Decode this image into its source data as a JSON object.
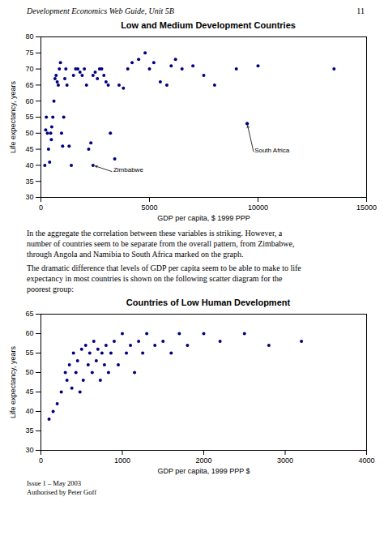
{
  "page_header": "Development Economics Web Guide, Unit 5B",
  "page_number": "11",
  "paragraphs": [
    "In the aggregate the correlation between these variables is striking. However, a\nnumber of countries seem to be separate from the overall pattern, from Zimbabwe,\nthrough Angola and Namibia to South Africa marked on the graph.",
    "The dramatic difference that levels of GDP per capita seem to be able to make to life\nexpectancy in most countries is shown on the following scatter diagram for the\npoorest group:"
  ],
  "footer": [
    "Issue 1 – May 2003",
    "Authorised by Peter Goff"
  ],
  "chart_data": [
    {
      "type": "scatter",
      "title": "Low and Medium Development Countries",
      "xlabel": "GDP per capita, $ 1999 PPP",
      "ylabel": "Life expectancy, years",
      "color": "#000080",
      "x": [
        180,
        220,
        250,
        300,
        350,
        400,
        450,
        480,
        500,
        550,
        600,
        650,
        700,
        750,
        800,
        850,
        900,
        950,
        1000,
        1050,
        1100,
        1150,
        1200,
        1300,
        1400,
        1500,
        1600,
        1700,
        1800,
        1900,
        2000,
        2100,
        2200,
        2300,
        2400,
        2500,
        2600,
        2700,
        2800,
        2900,
        3000,
        3100,
        3200,
        3400,
        3600,
        3800,
        4000,
        4200,
        4500,
        4800,
        5000,
        5200,
        5500,
        5800,
        6000,
        6200,
        6500,
        7000,
        7500,
        8000,
        9000,
        9500,
        10000,
        13500,
        2400,
        9500
      ],
      "values": [
        40,
        51,
        55,
        50,
        45,
        41,
        50,
        48,
        52,
        55,
        60,
        67,
        68,
        66,
        65,
        70,
        72,
        50,
        46,
        55,
        67,
        70,
        65,
        46,
        40,
        68,
        70,
        70,
        69,
        68,
        70,
        65,
        45,
        47,
        68,
        69,
        67,
        70,
        70,
        68,
        66,
        65,
        50,
        42,
        65,
        64,
        70,
        72,
        73,
        75,
        70,
        72,
        66,
        65,
        71,
        73,
        70,
        71,
        68,
        65,
        70,
        53,
        71,
        70,
        40,
        53
      ],
      "xlim": [
        0,
        15000
      ],
      "ylim": [
        30,
        80
      ],
      "xticks": [
        0,
        5000,
        10000,
        15000
      ],
      "yticks": [
        30,
        35,
        40,
        45,
        50,
        55,
        60,
        65,
        70,
        75,
        80
      ],
      "grid": false,
      "annotations": [
        {
          "text": "Zimbabwe",
          "x": 2400,
          "y": 40,
          "text_x": 3300,
          "text_y": 38
        },
        {
          "text": "South Africa",
          "x": 9500,
          "y": 53,
          "text_x": 9800,
          "text_y": 44
        }
      ]
    },
    {
      "type": "scatter",
      "title": "Countries of Low Human Development",
      "xlabel": "GDP per capita, 1999 PPP $",
      "ylabel": "Life expectancy, years",
      "color": "#000080",
      "x": [
        100,
        150,
        200,
        250,
        300,
        320,
        350,
        380,
        400,
        430,
        450,
        480,
        500,
        520,
        550,
        580,
        600,
        630,
        650,
        680,
        700,
        730,
        750,
        780,
        800,
        830,
        860,
        900,
        950,
        1000,
        1050,
        1100,
        1150,
        1200,
        1250,
        1300,
        1400,
        1500,
        1600,
        1700,
        1800,
        2000,
        2200,
        2500,
        2800,
        3200
      ],
      "values": [
        38,
        40,
        42,
        45,
        50,
        48,
        52,
        46,
        55,
        50,
        53,
        45,
        56,
        48,
        57,
        52,
        55,
        50,
        58,
        53,
        56,
        48,
        55,
        52,
        57,
        50,
        55,
        58,
        52,
        60,
        55,
        57,
        50,
        58,
        55,
        60,
        57,
        58,
        55,
        60,
        57,
        60,
        58,
        60,
        57,
        58
      ],
      "xlim": [
        0,
        4000
      ],
      "ylim": [
        30,
        65
      ],
      "xticks": [
        0,
        1000,
        2000,
        3000,
        4000
      ],
      "yticks": [
        30,
        35,
        40,
        45,
        50,
        55,
        60,
        65
      ],
      "grid": false
    }
  ]
}
